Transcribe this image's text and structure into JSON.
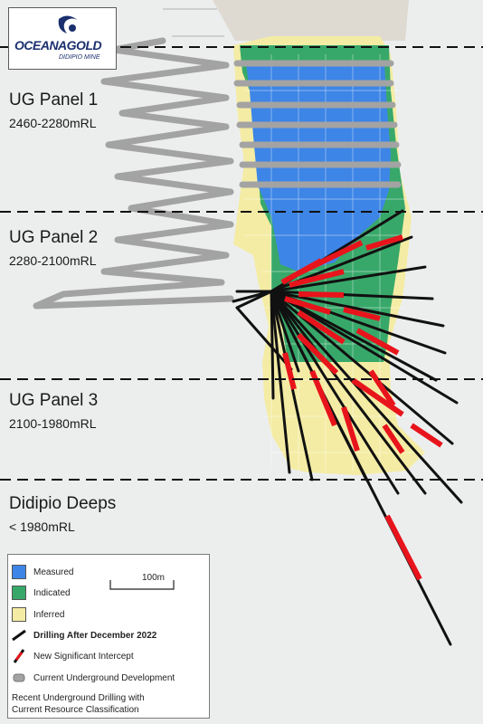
{
  "logo": {
    "brand": "OCEANAGOLD",
    "site": "DIDIPIO MINE"
  },
  "panels": [
    {
      "name": "UG Panel 1",
      "range": "2460-2280mRL"
    },
    {
      "name": "UG Panel 2",
      "range": "2280-2100mRL"
    },
    {
      "name": "UG Panel 3",
      "range": "2100-1980mRL"
    },
    {
      "name": "Didipio Deeps",
      "range": "< 1980mRL"
    }
  ],
  "legend": {
    "items": [
      {
        "label": "Measured",
        "color": "#3d85e6"
      },
      {
        "label": "Indicated",
        "color": "#38a86a"
      },
      {
        "label": "Inferred",
        "color": "#f4eca4"
      },
      {
        "label": "Drilling After December 2022",
        "icon": "drillhole-line-icon"
      },
      {
        "label": "New Significant Intercept",
        "icon": "intercept-icon"
      },
      {
        "label": "Current Underground Development",
        "icon": "development-icon"
      }
    ],
    "scale": "100m",
    "title_line1": "Recent Underground Drilling with",
    "title_line2": "Current Resource Classification"
  },
  "colors": {
    "measured": "#3d85e6",
    "indicated": "#38a86a",
    "inferred": "#f4eca4",
    "drilling": "#111111",
    "intercept": "#e8141c",
    "development": "#9b9b9b"
  }
}
